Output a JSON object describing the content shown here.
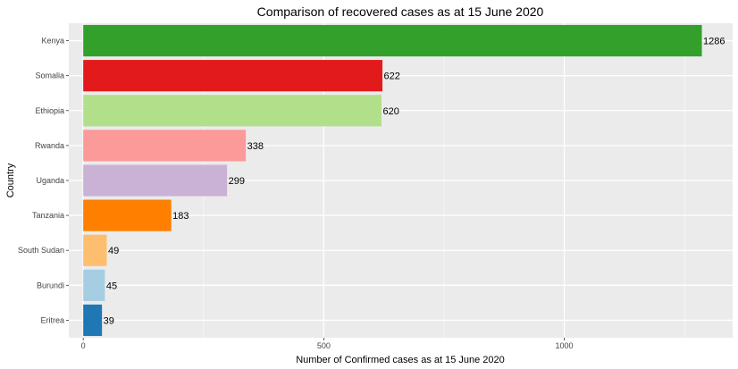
{
  "chart_data": {
    "type": "bar",
    "orientation": "horizontal",
    "title": "Comparison of recovered cases as at 15 June 2020",
    "xlabel": "Number of Confirmed cases as at 15 June 2020",
    "ylabel": "Country",
    "categories": [
      "Kenya",
      "Somalia",
      "Ethiopia",
      "Rwanda",
      "Uganda",
      "Tanzania",
      "South Sudan",
      "Burundi",
      "Eritrea"
    ],
    "values": [
      1286,
      622,
      620,
      338,
      299,
      183,
      49,
      45,
      39
    ],
    "data_labels": [
      "1286",
      "622",
      "620",
      "338",
      "299",
      "183",
      "49",
      "45",
      "39"
    ],
    "colors": [
      "#33a02c",
      "#e31a1c",
      "#b2df8a",
      "#fb9a99",
      "#cab2d6",
      "#ff7f00",
      "#fdbf6f",
      "#a6cee3",
      "#1f78b4"
    ],
    "xticks": [
      0,
      500,
      1000
    ],
    "xtick_labels": [
      "0",
      "500",
      "1000"
    ],
    "xlim": [
      -30,
      1350
    ],
    "grid": true,
    "panel_background": "#ebebeb",
    "legend": "none"
  }
}
